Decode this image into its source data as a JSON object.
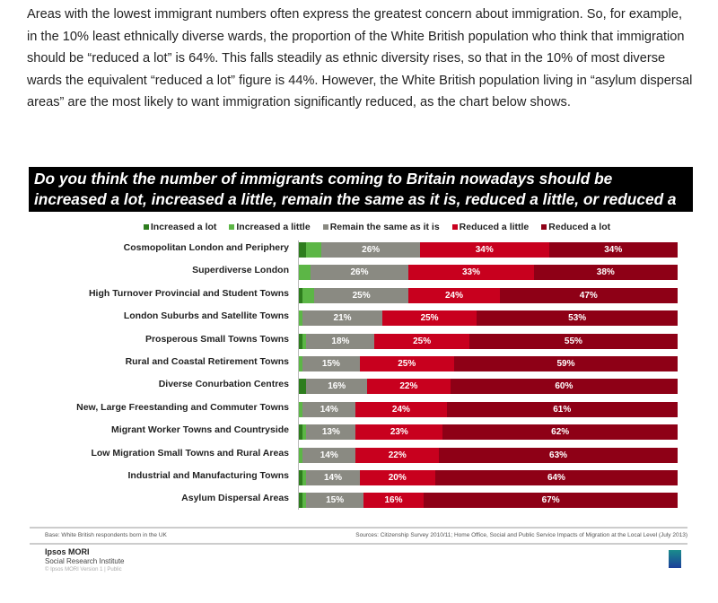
{
  "intro": "Areas with the lowest immigrant numbers often express the greatest concern about immigration. So, for example, in the 10% least ethnically diverse wards, the proportion of the White British population who think that immigration should be “reduced a lot” is 64%. This falls steadily as ethnic diversity rises, so that in the 10% of most diverse wards the equivalent “reduced a lot” figure is 44%. However, the White British population living in “asylum dispersal areas” are the most likely to want immigration significantly reduced, as the chart below shows.",
  "chart_data": {
    "type": "bar",
    "orientation": "horizontal",
    "stacked": true,
    "title": "Do you think the number of immigrants coming to Britain nowadays should be increased a lot, increased a little, remain the same as it is, reduced a little, or reduced a lot?",
    "legend_position": "top",
    "categories": [
      "Cosmopolitan London and Periphery",
      "Superdiverse London",
      "High Turnover Provincial and Student Towns",
      "London Suburbs and Satellite Towns",
      "Prosperous Small Towns Towns",
      "Rural and Coastal Retirement Towns",
      "Diverse Conurbation Centres",
      "New, Large Freestanding and Commuter Towns",
      "Migrant Worker Towns and Countryside",
      "Low Migration Small Towns and Rural Areas",
      "Industrial and Manufacturing Towns",
      "Asylum Dispersal Areas"
    ],
    "series": [
      {
        "name": "Increased a lot",
        "color": "#2e7d1e",
        "values": [
          2,
          0,
          1,
          0,
          1,
          0,
          2,
          0,
          1,
          0,
          1,
          1
        ],
        "labeled": false
      },
      {
        "name": "Increased a little",
        "color": "#5cb646",
        "values": [
          4,
          3,
          3,
          1,
          1,
          1,
          0,
          1,
          1,
          1,
          1,
          1
        ],
        "labeled": false
      },
      {
        "name": "Remain the same as it is",
        "color": "#8a8a82",
        "values": [
          26,
          26,
          25,
          21,
          18,
          15,
          16,
          14,
          13,
          14,
          14,
          15
        ],
        "labeled": true
      },
      {
        "name": "Reduced a little",
        "color": "#c8001e",
        "values": [
          34,
          33,
          24,
          25,
          25,
          25,
          22,
          24,
          23,
          22,
          20,
          16
        ],
        "labeled": true
      },
      {
        "name": "Reduced a lot",
        "color": "#8e0016",
        "values": [
          34,
          38,
          47,
          53,
          55,
          59,
          60,
          61,
          62,
          63,
          64,
          67
        ],
        "labeled": true
      }
    ],
    "xlim": [
      0,
      100
    ]
  },
  "footer": {
    "base": "Base: White British respondents born in the UK",
    "sources": "Sources: Citizenship Survey 2010/11; Home Office, Social and Public Service Impacts of Migration at the Local Level (July 2013)",
    "org": "Ipsos MORI",
    "institute": "Social Research Institute",
    "copyright": "© Ipsos MORI    Version 1 | Public",
    "logo": "Ipsos"
  }
}
